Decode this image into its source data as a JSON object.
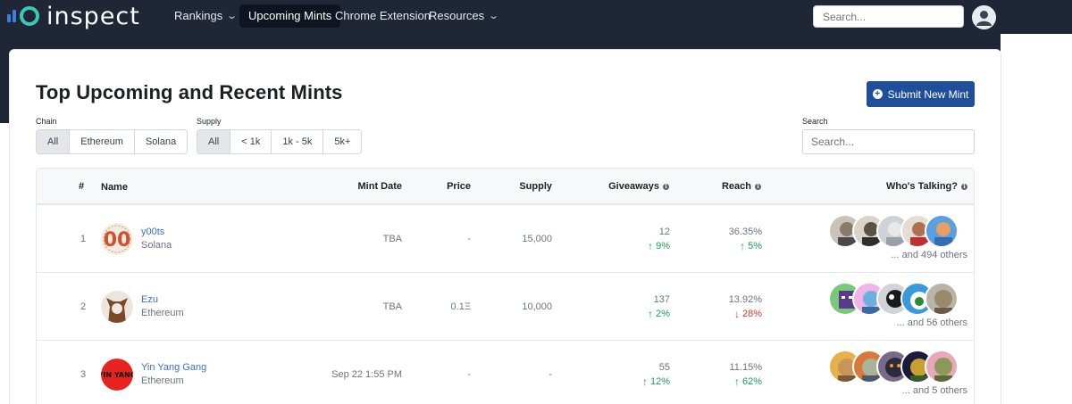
{
  "nav": {
    "logo_text": "inspect",
    "items": [
      {
        "label": "Rankings",
        "has_dropdown": true,
        "active": false
      },
      {
        "label": "Upcoming Mints",
        "has_dropdown": false,
        "active": true
      },
      {
        "label": "Chrome Extension",
        "has_dropdown": false,
        "active": false
      },
      {
        "label": "Resources",
        "has_dropdown": true,
        "active": false
      }
    ],
    "search_placeholder": "Search...",
    "user_icon": "user-icon"
  },
  "page": {
    "title": "Top Upcoming and Recent Mints",
    "submit_label": "Submit New Mint",
    "chain_label": "Chain",
    "chain_options": [
      "All",
      "Ethereum",
      "Solana"
    ],
    "chain_selected": "All",
    "supply_label": "Supply",
    "supply_options": [
      "All",
      "< 1k",
      "1k - 5k",
      "5k+"
    ],
    "supply_selected": "All",
    "search_label": "Search",
    "search_placeholder": "Search..."
  },
  "table": {
    "headers": {
      "rank": "#",
      "name": "Name",
      "mint_date": "Mint Date",
      "price": "Price",
      "supply": "Supply",
      "giveaways": "Giveaways",
      "reach": "Reach",
      "talking": "Who's Talking?"
    },
    "rows": [
      {
        "rank": "1",
        "name": "y00ts",
        "chain": "Solana",
        "mint_date": "TBA",
        "price": "-",
        "supply": "15,000",
        "giveaways": "12",
        "giveaways_change": "9%",
        "giveaways_dir": "up",
        "reach": "36.35%",
        "reach_change": "5%",
        "reach_dir": "up",
        "others": "... and 494 others"
      },
      {
        "rank": "2",
        "name": "Ezu",
        "chain": "Ethereum",
        "mint_date": "TBA",
        "price": "0.1Ξ",
        "supply": "10,000",
        "giveaways": "137",
        "giveaways_change": "2%",
        "giveaways_dir": "up",
        "reach": "13.92%",
        "reach_change": "28%",
        "reach_dir": "down",
        "others": "... and 56 others"
      },
      {
        "rank": "3",
        "name": "Yin Yang Gang",
        "chain": "Ethereum",
        "mint_date": "Sep 22 1:55 PM",
        "price": "-",
        "supply": "-",
        "giveaways": "55",
        "giveaways_change": "12%",
        "giveaways_dir": "up",
        "reach": "11.15%",
        "reach_change": "62%",
        "reach_dir": "up",
        "others": "... and 5 others"
      }
    ],
    "avatar_text": {
      "row1": "00",
      "row3": "YIN YANG"
    }
  },
  "colors": {
    "nav_bg": "#1f2736",
    "accent_button": "#1f4f9b",
    "link": "#3b6ec7",
    "trend_up": "#1f9d57",
    "trend_down": "#d63b2f"
  },
  "icons": {
    "arrow_up": "↑",
    "arrow_down": "↓",
    "chevron": "⌄",
    "info": "i",
    "plus": "+"
  }
}
